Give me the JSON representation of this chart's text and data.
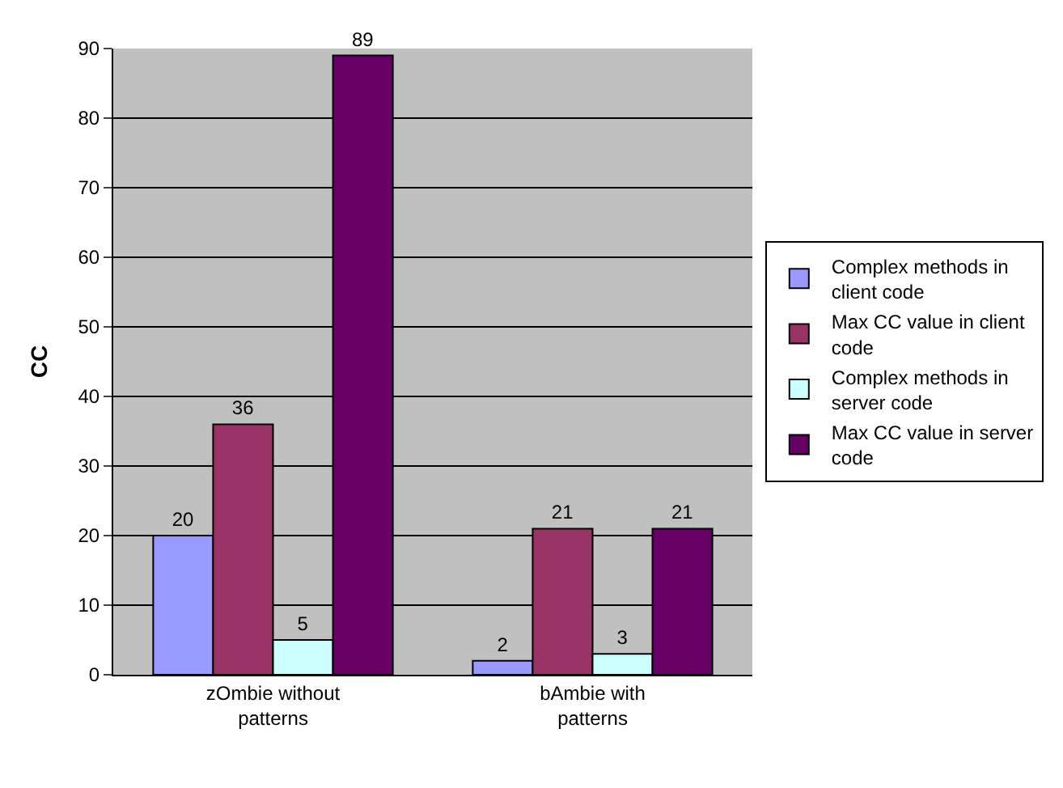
{
  "chart_data": {
    "type": "bar",
    "ylabel": "CC",
    "categories": [
      "zOmbie without patterns",
      "bAmbie with patterns"
    ],
    "series": [
      {
        "name": "Complex methods in client code",
        "color": "#9999ff",
        "values": [
          20,
          2
        ]
      },
      {
        "name": "Max CC value in client code",
        "color": "#993366",
        "values": [
          36,
          21
        ]
      },
      {
        "name": "Complex methods in server code",
        "color": "#ccffff",
        "values": [
          5,
          3
        ]
      },
      {
        "name": "Max CC value in server code",
        "color": "#660066",
        "values": [
          89,
          21
        ]
      }
    ],
    "ylim": [
      0,
      90
    ],
    "yticks": [
      0,
      10,
      20,
      30,
      40,
      50,
      60,
      70,
      80,
      90
    ],
    "grid": "y",
    "legend": "right",
    "data_labels": true
  }
}
